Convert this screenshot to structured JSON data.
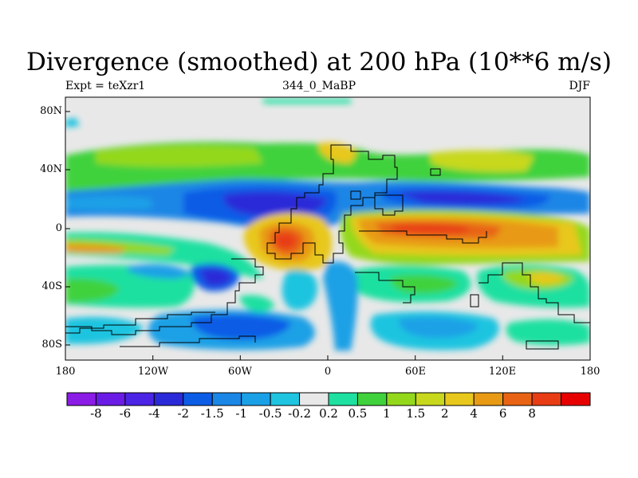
{
  "title": "Divergence (smoothed) at 200 hPa (10**6 m/s)",
  "left_label": "Expt = teXzr1",
  "center_label": "344_0_MaBP",
  "right_label": "DJF",
  "x_ticks": [
    "180",
    "120W",
    "60W",
    "0",
    "60E",
    "120E",
    "180"
  ],
  "y_ticks": [
    "80N",
    "40N",
    "0",
    "40S",
    "80S"
  ],
  "colorbar": {
    "colors": [
      "#8b1ce6",
      "#6a1ce6",
      "#4c24e6",
      "#2a2ad8",
      "#0d5ce6",
      "#1a86e6",
      "#1aa0e6",
      "#1ec4e0",
      "#e8e8e8",
      "#1ee0a0",
      "#40d23c",
      "#94d81c",
      "#c8d81c",
      "#e8c81c",
      "#e89a14",
      "#e86414",
      "#e83c14",
      "#e60000"
    ],
    "labels": [
      "-8",
      "-6",
      "-4",
      "-2",
      "-1.5",
      "-1",
      "-0.5",
      "-0.2",
      "0.2",
      "0.5",
      "1",
      "1.5",
      "2",
      "4",
      "6",
      "8"
    ]
  }
}
